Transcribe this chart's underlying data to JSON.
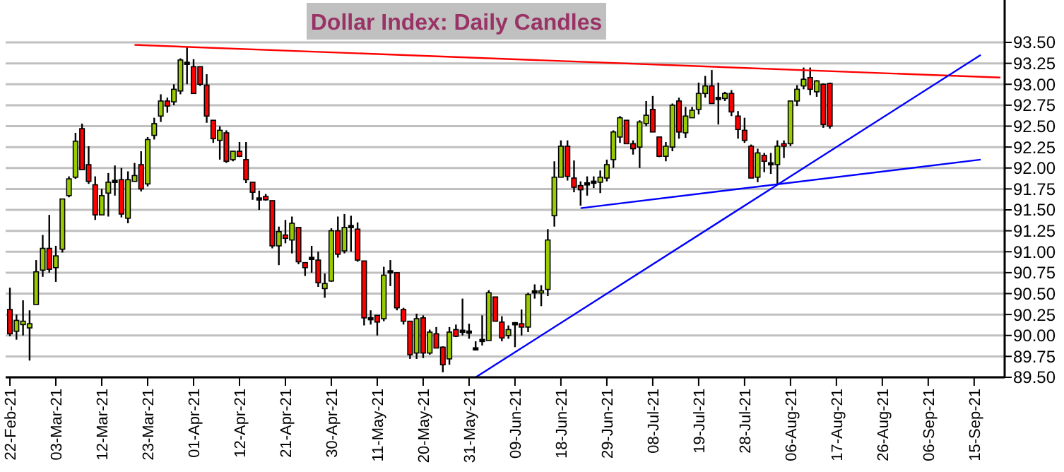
{
  "chart_data": {
    "type": "candlestick",
    "title": "Dollar Index: Daily Candles",
    "grid": "y",
    "categories": [
      "22-Feb-21",
      null,
      null,
      null,
      null,
      null,
      null,
      "03-Mar-21",
      null,
      null,
      null,
      null,
      null,
      null,
      "12-Mar-21",
      null,
      null,
      null,
      null,
      null,
      null,
      "23-Mar-21",
      null,
      null,
      null,
      null,
      null,
      null,
      "01-Apr-21",
      null,
      null,
      null,
      null,
      null,
      null,
      "12-Apr-21",
      null,
      null,
      null,
      null,
      null,
      null,
      "21-Apr-21",
      null,
      null,
      null,
      null,
      null,
      null,
      "30-Apr-21",
      null,
      null,
      null,
      null,
      null,
      null,
      "11-May-21",
      null,
      null,
      null,
      null,
      null,
      null,
      "20-May-21",
      null,
      null,
      null,
      null,
      null,
      null,
      "31-May-21",
      null,
      null,
      null,
      null,
      null,
      null,
      "09-Jun-21",
      null,
      null,
      null,
      null,
      null,
      null,
      "18-Jun-21",
      null,
      null,
      null,
      null,
      null,
      null,
      "29-Jun-21",
      null,
      null,
      null,
      null,
      null,
      null,
      "08-Jul-21",
      null,
      null,
      null,
      null,
      null,
      null,
      "19-Jul-21",
      null,
      null,
      null,
      null,
      null,
      null,
      "28-Jul-21",
      null,
      null,
      null,
      null,
      null,
      null,
      "06-Aug-21",
      null,
      null,
      null,
      null,
      null,
      null,
      "17-Aug-21",
      null,
      null,
      null,
      null,
      null,
      null,
      "26-Aug-21",
      null,
      null,
      null,
      null,
      null,
      null,
      "06-Sep-21",
      null,
      null,
      null,
      null,
      null,
      null,
      "15-Sep-21",
      null,
      null,
      null,
      null
    ],
    "ohlc": [
      [
        90.31,
        90.57,
        89.99,
        90.02
      ],
      [
        90.05,
        90.25,
        89.95,
        90.18
      ],
      [
        90.13,
        90.42,
        90.0,
        90.17
      ],
      [
        90.09,
        90.3,
        89.7,
        90.14
      ],
      [
        90.37,
        90.9,
        90.37,
        90.76
      ],
      [
        90.78,
        91.2,
        90.7,
        91.04
      ],
      [
        91.04,
        91.44,
        90.75,
        90.79
      ],
      [
        90.81,
        91.07,
        90.64,
        90.95
      ],
      [
        91.03,
        91.63,
        90.99,
        91.63
      ],
      [
        91.67,
        91.9,
        91.65,
        91.87
      ],
      [
        91.89,
        92.42,
        91.87,
        92.32
      ],
      [
        92.47,
        92.53,
        91.98,
        91.98
      ],
      [
        92.04,
        92.26,
        91.81,
        91.84
      ],
      [
        91.8,
        91.9,
        91.38,
        91.44
      ],
      [
        91.44,
        91.75,
        91.44,
        91.67
      ],
      [
        91.7,
        91.94,
        91.42,
        91.83
      ],
      [
        91.84,
        92.03,
        91.67,
        91.84
      ],
      [
        91.86,
        92.0,
        91.41,
        91.45
      ],
      [
        91.4,
        91.96,
        91.34,
        91.86
      ],
      [
        91.84,
        92.06,
        91.84,
        91.91
      ],
      [
        92.04,
        92.2,
        91.72,
        91.75
      ],
      [
        91.81,
        92.37,
        91.78,
        92.34
      ],
      [
        92.39,
        92.6,
        92.34,
        92.53
      ],
      [
        92.62,
        92.88,
        92.55,
        92.8
      ],
      [
        92.8,
        92.84,
        92.66,
        92.74
      ],
      [
        92.79,
        93.0,
        92.75,
        92.94
      ],
      [
        92.92,
        93.31,
        92.88,
        93.29
      ],
      [
        93.25,
        93.44,
        93.0,
        93.25
      ],
      [
        93.21,
        93.3,
        92.89,
        92.89
      ],
      [
        93.21,
        93.21,
        92.98,
        93.0
      ],
      [
        92.99,
        93.12,
        92.54,
        92.62
      ],
      [
        92.57,
        92.57,
        92.3,
        92.35
      ],
      [
        92.33,
        92.5,
        92.1,
        92.45
      ],
      [
        92.42,
        92.45,
        92.06,
        92.08
      ],
      [
        92.1,
        92.2,
        92.08,
        92.2
      ],
      [
        92.2,
        92.31,
        92.13,
        92.14
      ],
      [
        92.1,
        92.31,
        91.82,
        91.86
      ],
      [
        91.83,
        91.83,
        91.62,
        91.71
      ],
      [
        91.63,
        91.73,
        91.5,
        91.63
      ],
      [
        91.66,
        91.69,
        91.61,
        91.62
      ],
      [
        91.61,
        91.61,
        91.04,
        91.07
      ],
      [
        91.07,
        91.3,
        90.84,
        91.24
      ],
      [
        91.2,
        91.38,
        91.1,
        91.16
      ],
      [
        91.14,
        91.42,
        90.98,
        91.34
      ],
      [
        91.29,
        91.29,
        90.85,
        90.88
      ],
      [
        90.87,
        90.87,
        90.71,
        90.81
      ],
      [
        90.92,
        91.07,
        90.75,
        90.92
      ],
      [
        90.9,
        91.0,
        90.58,
        90.63
      ],
      [
        90.56,
        90.74,
        90.45,
        90.62
      ],
      [
        90.65,
        91.28,
        90.64,
        91.25
      ],
      [
        91.25,
        91.42,
        90.93,
        90.97
      ],
      [
        91.01,
        91.45,
        90.98,
        91.29
      ],
      [
        91.3,
        91.43,
        91.0,
        91.3
      ],
      [
        91.27,
        91.35,
        90.88,
        90.9
      ],
      [
        90.89,
        90.89,
        90.12,
        90.21
      ],
      [
        90.2,
        90.3,
        90.13,
        90.2
      ],
      [
        90.24,
        90.24,
        90.0,
        90.16
      ],
      [
        90.2,
        90.82,
        90.17,
        90.72
      ],
      [
        90.76,
        90.9,
        90.59,
        90.76
      ],
      [
        90.75,
        90.75,
        90.3,
        90.33
      ],
      [
        90.31,
        90.33,
        90.13,
        90.17
      ],
      [
        90.17,
        90.17,
        89.72,
        89.77
      ],
      [
        89.79,
        90.26,
        89.72,
        90.2
      ],
      [
        90.21,
        90.24,
        89.73,
        89.79
      ],
      [
        89.79,
        90.07,
        89.77,
        90.04
      ],
      [
        90.02,
        90.1,
        89.85,
        89.85
      ],
      [
        89.86,
        89.87,
        89.56,
        89.65
      ],
      [
        89.72,
        90.1,
        89.65,
        90.04
      ],
      [
        90.07,
        90.13,
        89.98,
        89.99
      ],
      [
        90.05,
        90.44,
        90.0,
        90.05
      ],
      [
        90.04,
        90.14,
        89.96,
        90.04
      ],
      [
        89.84,
        89.93,
        89.82,
        89.84
      ],
      [
        89.94,
        90.24,
        89.88,
        89.94
      ],
      [
        89.94,
        90.54,
        89.94,
        90.51
      ],
      [
        90.46,
        90.46,
        90.17,
        90.17
      ],
      [
        90.16,
        90.23,
        89.93,
        89.97
      ],
      [
        90.0,
        90.12,
        89.96,
        90.07
      ],
      [
        90.14,
        90.16,
        89.86,
        90.14
      ],
      [
        90.14,
        90.31,
        90.0,
        90.1
      ],
      [
        90.1,
        90.51,
        90.04,
        90.49
      ],
      [
        90.52,
        90.61,
        90.44,
        90.52
      ],
      [
        90.5,
        90.6,
        90.35,
        90.52
      ],
      [
        90.55,
        91.27,
        90.47,
        91.14
      ],
      [
        91.43,
        92.08,
        91.3,
        91.89
      ],
      [
        91.89,
        92.33,
        91.89,
        92.26
      ],
      [
        92.26,
        92.33,
        91.85,
        91.9
      ],
      [
        91.88,
        92.09,
        91.71,
        91.77
      ],
      [
        91.79,
        91.84,
        91.55,
        91.74
      ],
      [
        91.81,
        91.9,
        91.67,
        91.81
      ],
      [
        91.83,
        91.9,
        91.76,
        91.83
      ],
      [
        91.83,
        91.97,
        91.7,
        91.89
      ],
      [
        91.88,
        92.1,
        91.84,
        92.04
      ],
      [
        92.1,
        92.45,
        92.0,
        92.43
      ],
      [
        92.37,
        92.62,
        92.3,
        92.6
      ],
      [
        92.57,
        92.57,
        92.29,
        92.29
      ],
      [
        92.29,
        92.33,
        92.16,
        92.23
      ],
      [
        92.25,
        92.57,
        92.0,
        92.55
      ],
      [
        92.53,
        92.8,
        92.5,
        92.63
      ],
      [
        92.7,
        92.86,
        92.43,
        92.43
      ],
      [
        92.37,
        92.37,
        92.13,
        92.14
      ],
      [
        92.14,
        92.31,
        92.08,
        92.26
      ],
      [
        92.25,
        92.77,
        92.2,
        92.75
      ],
      [
        92.8,
        92.84,
        92.35,
        92.43
      ],
      [
        92.42,
        92.73,
        92.36,
        92.62
      ],
      [
        92.6,
        92.73,
        92.6,
        92.69
      ],
      [
        92.7,
        93.02,
        92.64,
        92.89
      ],
      [
        92.89,
        93.1,
        92.84,
        92.98
      ],
      [
        92.98,
        93.17,
        92.77,
        92.77
      ],
      [
        92.83,
        93.02,
        92.52,
        92.83
      ],
      [
        92.83,
        92.91,
        92.8,
        92.89
      ],
      [
        92.89,
        92.93,
        92.62,
        92.67
      ],
      [
        92.62,
        92.68,
        92.35,
        92.46
      ],
      [
        92.45,
        92.6,
        92.3,
        92.33
      ],
      [
        92.26,
        92.28,
        91.88,
        91.88
      ],
      [
        91.89,
        92.23,
        91.83,
        92.18
      ],
      [
        92.15,
        92.18,
        91.95,
        92.08
      ],
      [
        92.05,
        92.18,
        91.93,
        92.05
      ],
      [
        92.04,
        92.33,
        91.81,
        92.26
      ],
      [
        92.29,
        92.33,
        92.12,
        92.26
      ],
      [
        92.29,
        92.8,
        92.26,
        92.8
      ],
      [
        92.8,
        92.99,
        92.74,
        92.94
      ],
      [
        92.98,
        93.2,
        92.94,
        93.06
      ],
      [
        93.08,
        93.2,
        92.87,
        92.94
      ],
      [
        92.91,
        93.05,
        92.85,
        93.04
      ],
      [
        93.0,
        93.01,
        92.48,
        92.52
      ],
      [
        93.01,
        93.02,
        92.47,
        92.5
      ],
      null,
      null,
      null,
      null,
      null,
      null,
      null,
      null,
      null,
      null,
      null,
      null,
      null,
      null,
      null,
      null,
      null,
      null,
      null,
      null,
      null,
      null,
      null,
      null,
      null,
      null
    ],
    "colors": [
      "#ff0000",
      "#99cc00",
      "#99cc00",
      "#99cc00",
      "#99cc00",
      "#99cc00",
      "#ff0000",
      "#99cc00",
      "#99cc00",
      "#99cc00",
      "#99cc00",
      "#ff0000",
      "#ff0000",
      "#ff0000",
      "#99cc00",
      "#99cc00",
      "#000000",
      "#ff0000",
      "#99cc00",
      "#99cc00",
      "#ff0000",
      "#99cc00",
      "#99cc00",
      "#99cc00",
      "#ff0000",
      "#99cc00",
      "#99cc00",
      "#000000",
      "#ff0000",
      "#ff0000",
      "#ff0000",
      "#ff0000",
      "#99cc00",
      "#ff0000",
      "#99cc00",
      "#ff0000",
      "#ff0000",
      "#ff0000",
      "#000000",
      "#ff0000",
      "#ff0000",
      "#99cc00",
      "#ff0000",
      "#99cc00",
      "#ff0000",
      "#ff0000",
      "#000000",
      "#ff0000",
      "#99cc00",
      "#99cc00",
      "#ff0000",
      "#99cc00",
      "#000000",
      "#ff0000",
      "#ff0000",
      "#000000",
      "#ff0000",
      "#99cc00",
      "#000000",
      "#ff0000",
      "#ff0000",
      "#ff0000",
      "#99cc00",
      "#ff0000",
      "#99cc00",
      "#ff0000",
      "#ff0000",
      "#99cc00",
      "#ff0000",
      "#000000",
      "#000000",
      "#000000",
      "#000000",
      "#99cc00",
      "#ff0000",
      "#ff0000",
      "#99cc00",
      "#000000",
      "#ff0000",
      "#99cc00",
      "#000000",
      "#99cc00",
      "#99cc00",
      "#99cc00",
      "#99cc00",
      "#ff0000",
      "#ff0000",
      "#ff0000",
      "#000000",
      "#000000",
      "#99cc00",
      "#99cc00",
      "#99cc00",
      "#99cc00",
      "#ff0000",
      "#ff0000",
      "#99cc00",
      "#99cc00",
      "#ff0000",
      "#ff0000",
      "#99cc00",
      "#99cc00",
      "#ff0000",
      "#99cc00",
      "#99cc00",
      "#99cc00",
      "#99cc00",
      "#ff0000",
      "#000000",
      "#99cc00",
      "#ff0000",
      "#ff0000",
      "#ff0000",
      "#ff0000",
      "#99cc00",
      "#ff0000",
      "#000000",
      "#99cc00",
      "#ff0000",
      "#99cc00",
      "#99cc00",
      "#99cc00",
      "#ff0000",
      "#99cc00",
      "#ff0000",
      "#ff0000",
      null,
      null,
      null,
      null,
      null,
      null,
      null,
      null,
      null,
      null,
      null,
      null,
      null,
      null,
      null,
      null,
      null,
      null,
      null,
      null,
      null,
      null,
      null,
      null,
      null,
      null
    ],
    "ylim": [
      89.5,
      93.5
    ],
    "yticks": [
      {
        "value": 89.5,
        "label": "89.50"
      },
      {
        "value": 89.75,
        "label": "89.75"
      },
      {
        "value": 90,
        "label": "90.00"
      },
      {
        "value": 90.25,
        "label": "90.25"
      },
      {
        "value": 90.5,
        "label": "90.50"
      },
      {
        "value": 90.75,
        "label": "90.75"
      },
      {
        "value": 91,
        "label": "91.00"
      },
      {
        "value": 91.25,
        "label": "91.25"
      },
      {
        "value": 91.5,
        "label": "91.50"
      },
      {
        "value": 91.75,
        "label": "91.75"
      },
      {
        "value": 92,
        "label": "92.00"
      },
      {
        "value": 92.25,
        "label": "92.25"
      },
      {
        "value": 92.5,
        "label": "92.50"
      },
      {
        "value": 92.75,
        "label": "92.75"
      },
      {
        "value": 93,
        "label": "93.00"
      },
      {
        "value": 93.25,
        "label": "93.25"
      },
      {
        "value": 93.5,
        "label": "93.50"
      }
    ],
    "series": [
      {
        "type": "line",
        "color": "#ff0000",
        "values": [
          null,
          null,
          null,
          null,
          null,
          null,
          null,
          null,
          null,
          null,
          null,
          null,
          null,
          null,
          null,
          null,
          null,
          null,
          null,
          93.47,
          null,
          null,
          null,
          null,
          null,
          null,
          null,
          null,
          null,
          null,
          null,
          null,
          null,
          null,
          null,
          null,
          null,
          null,
          null,
          null,
          null,
          null,
          null,
          null,
          null,
          null,
          null,
          null,
          null,
          null,
          null,
          null,
          null,
          null,
          null,
          null,
          null,
          null,
          null,
          null,
          null,
          null,
          null,
          null,
          null,
          null,
          null,
          null,
          null,
          null,
          null,
          null,
          null,
          null,
          null,
          null,
          null,
          null,
          null,
          null,
          null,
          null,
          null,
          null,
          null,
          null,
          null,
          null,
          null,
          null,
          null,
          null,
          null,
          null,
          null,
          null,
          null,
          null,
          null,
          null,
          null,
          null,
          null,
          null,
          null,
          null,
          null,
          null,
          null,
          null,
          null,
          null,
          null,
          null,
          null,
          null,
          null,
          null,
          null,
          null,
          null,
          null,
          null,
          null,
          null,
          null,
          null,
          null,
          null,
          null,
          null,
          null,
          null,
          null,
          null,
          null,
          null,
          null,
          null,
          null,
          null,
          null,
          null,
          null,
          null,
          null,
          null,
          null,
          null,
          null,
          null,
          93.08
        ]
      },
      {
        "type": "line",
        "color": "#0000ff",
        "values": [
          null,
          null,
          null,
          null,
          null,
          null,
          null,
          null,
          null,
          null,
          null,
          null,
          null,
          null,
          null,
          null,
          null,
          null,
          null,
          null,
          null,
          null,
          null,
          null,
          null,
          null,
          null,
          null,
          null,
          null,
          null,
          null,
          null,
          null,
          null,
          null,
          null,
          null,
          null,
          null,
          null,
          null,
          null,
          null,
          null,
          null,
          null,
          null,
          null,
          null,
          null,
          null,
          null,
          null,
          null,
          null,
          null,
          null,
          null,
          null,
          null,
          null,
          null,
          null,
          null,
          null,
          null,
          null,
          null,
          null,
          null,
          89.5,
          null,
          null,
          null,
          null,
          null,
          null,
          null,
          null,
          null,
          null,
          null,
          null,
          null,
          null,
          null,
          null,
          null,
          null,
          null,
          null,
          null,
          null,
          null,
          null,
          null,
          null,
          null,
          null,
          null,
          null,
          null,
          null,
          null,
          null,
          null,
          null,
          null,
          null,
          null,
          null,
          null,
          null,
          null,
          null,
          null,
          null,
          null,
          null,
          null,
          null,
          null,
          null,
          null,
          null,
          null,
          null,
          null,
          null,
          null,
          null,
          null,
          null,
          null,
          null,
          null,
          null,
          null,
          null,
          null,
          null,
          null,
          null,
          null,
          null,
          null,
          null,
          93.35,
          null,
          null,
          null
        ]
      },
      {
        "type": "line",
        "color": "#0000ff",
        "values": [
          null,
          null,
          null,
          null,
          null,
          null,
          null,
          null,
          null,
          null,
          null,
          null,
          null,
          null,
          null,
          null,
          null,
          null,
          null,
          null,
          null,
          null,
          null,
          null,
          null,
          null,
          null,
          null,
          null,
          null,
          null,
          null,
          null,
          null,
          null,
          null,
          null,
          null,
          null,
          null,
          null,
          null,
          null,
          null,
          null,
          null,
          null,
          null,
          null,
          null,
          null,
          null,
          null,
          null,
          null,
          null,
          null,
          null,
          null,
          null,
          null,
          null,
          null,
          null,
          null,
          null,
          null,
          null,
          null,
          null,
          null,
          null,
          null,
          null,
          null,
          null,
          null,
          null,
          null,
          null,
          null,
          null,
          null,
          null,
          null,
          null,
          null,
          91.52,
          null,
          null,
          null,
          null,
          null,
          null,
          null,
          null,
          null,
          null,
          null,
          null,
          null,
          null,
          null,
          null,
          null,
          null,
          null,
          null,
          null,
          null,
          null,
          null,
          null,
          null,
          null,
          null,
          null,
          null,
          null,
          null,
          null,
          null,
          null,
          null,
          null,
          null,
          null,
          null,
          null,
          null,
          null,
          null,
          null,
          null,
          null,
          null,
          null,
          null,
          null,
          null,
          null,
          null,
          null,
          null,
          null,
          null,
          null,
          null,
          92.1,
          null,
          null,
          null
        ]
      }
    ]
  }
}
